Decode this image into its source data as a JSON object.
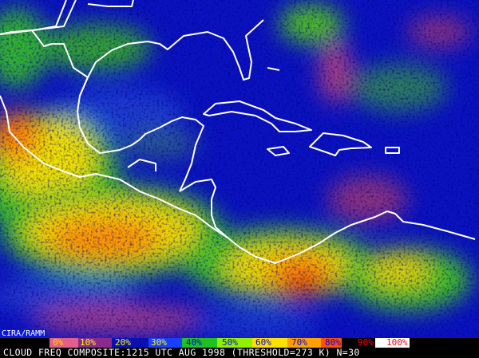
{
  "credit": "CIRA/RAMM",
  "caption": "CLOUD FREQ COMPOSITE:1215 UTC AUG 1998 (THRESHOLD=273 K) N=30",
  "legend": {
    "labels": [
      "0%",
      "10%",
      "20%",
      "30%",
      "40%",
      "50%",
      "60%",
      "70%",
      "80%",
      "90%",
      "100%"
    ],
    "colors": [
      "#e0608a",
      "#8a2a8a",
      "#0a10b0",
      "#1a40ff",
      "#20c020",
      "#90f000",
      "#ffe000",
      "#ffa000",
      "#ff5000",
      "#000000",
      "#ffffff"
    ],
    "label_colors": [
      "#ffd800",
      "#ffff00",
      "#ffff00",
      "#ffff00",
      "#0000ff",
      "#0000ff",
      "#0000ff",
      "#0000ff",
      "#0000ff",
      "#ff0000",
      "#ff0000"
    ]
  },
  "map": {
    "coastline_color": "#ffffff",
    "background_color": "#0a12c0"
  }
}
